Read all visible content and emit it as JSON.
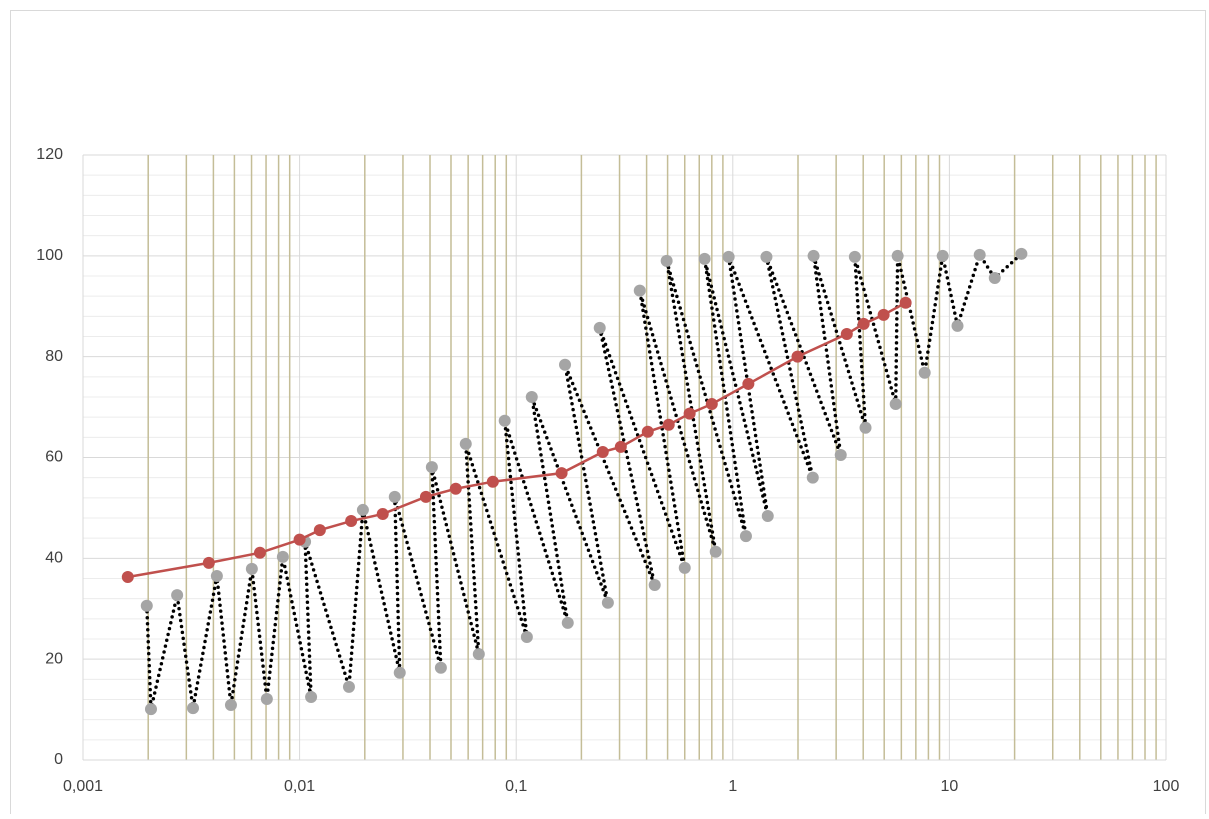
{
  "chart_data": {
    "type": "scatter-line",
    "xscale": "log",
    "grid": true,
    "minor_grid": true,
    "grid_color": "#c4bd97",
    "hgrid_color": "#d9d9d9",
    "xlim": [
      0.001,
      100
    ],
    "xticks": [
      {
        "value": 0.001,
        "label": "0,001"
      },
      {
        "value": 0.01,
        "label": "0,01"
      },
      {
        "value": 0.1,
        "label": "0,1"
      },
      1,
      10,
      100
    ],
    "ylim": [
      0,
      120
    ],
    "yticks": [
      0,
      20,
      40,
      60,
      80,
      100,
      120
    ],
    "series": [
      {
        "color": "#000000",
        "marker_color": "#a5a5a5",
        "line_style": "dotted",
        "x": [
          0.00197,
          0.00206,
          0.00272,
          0.00322,
          0.00415,
          0.00482,
          0.00602,
          0.00706,
          0.00837,
          0.0113,
          0.0106,
          0.0169,
          0.0196,
          0.029,
          0.0275,
          0.0449,
          0.0408,
          0.0672,
          0.0585,
          0.112,
          0.0885,
          0.173,
          0.118,
          0.265,
          0.168,
          0.436,
          0.243,
          0.6,
          0.372,
          0.834,
          0.495,
          1.15,
          0.741,
          1.45,
          0.957,
          2.34,
          1.43,
          3.15,
          2.36,
          4.1,
          3.66,
          5.65,
          5.77,
          7.69,
          9.31,
          10.9,
          13.8,
          16.2,
          21.5
        ],
        "values": [
          30.6,
          10.1,
          32.7,
          10.3,
          36.5,
          10.9,
          37.9,
          12.1,
          40.3,
          12.5,
          43.3,
          14.5,
          49.6,
          17.3,
          52.2,
          18.3,
          58.1,
          21.0,
          62.7,
          24.4,
          67.3,
          27.2,
          72.0,
          31.2,
          78.4,
          34.7,
          85.7,
          38.1,
          93.1,
          41.3,
          99.0,
          44.4,
          99.4,
          48.4,
          99.8,
          56.0,
          99.8,
          60.5,
          100.0,
          65.9,
          99.8,
          70.6,
          100.0,
          76.8,
          100.0,
          86.1,
          100.2,
          95.6,
          100.4
        ]
      },
      {
        "color": "#c0504d",
        "marker_color": "#c0504d",
        "line_style": "solid",
        "x": [
          0.00161,
          0.00381,
          0.00656,
          0.01,
          0.0124,
          0.0173,
          0.0242,
          0.0383,
          0.0526,
          0.078,
          0.162,
          0.251,
          0.304,
          0.405,
          0.506,
          0.632,
          0.8,
          1.18,
          1.99,
          3.36,
          4.02,
          4.97,
          6.28
        ],
        "values": [
          36.3,
          39.1,
          41.1,
          43.7,
          45.6,
          47.4,
          48.8,
          52.2,
          53.8,
          55.2,
          56.9,
          61.1,
          62.1,
          65.1,
          66.5,
          68.7,
          70.6,
          74.6,
          80.0,
          84.5,
          86.5,
          88.3,
          90.7
        ]
      }
    ]
  }
}
